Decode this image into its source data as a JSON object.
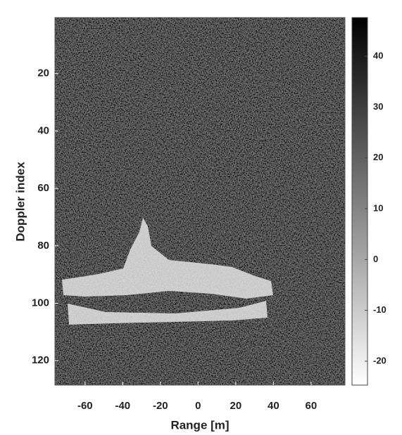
{
  "chart_data": {
    "type": "heatmap",
    "xlabel": "Range [m]",
    "ylabel": "Doppler index",
    "xlim": [
      -76,
      78
    ],
    "xticks": [
      -60,
      -40,
      -20,
      0,
      20,
      40,
      60
    ],
    "ylim": [
      0.5,
      128.5
    ],
    "yticks": [
      20,
      40,
      60,
      80,
      100,
      120
    ],
    "y_reversed": true,
    "colorbar": {
      "clim": [
        -24.7,
        47.6
      ],
      "ticks": [
        40,
        30,
        20,
        10,
        0,
        -10,
        -20
      ],
      "colormap": "gray-reversed"
    }
  }
}
